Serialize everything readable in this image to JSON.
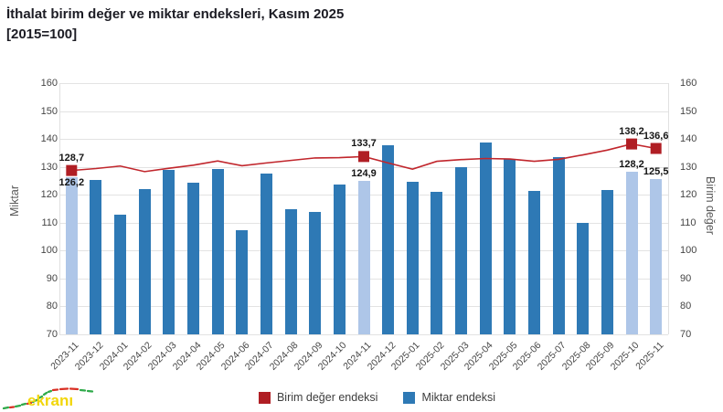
{
  "title": {
    "line1": "İthalat birim değer ve miktar endeksleri, Kasım 2025",
    "line2": "[2015=100]"
  },
  "legend": {
    "items": [
      {
        "label": "Birim değer endeksi",
        "color": "#b01e24"
      },
      {
        "label": "Miktar endeksi",
        "color": "#2e79b5"
      }
    ]
  },
  "watermark": {
    "text": "ekranı",
    "color": "#f2d60a"
  },
  "chart_data": {
    "type": "combo",
    "title": "İthalat birim değer ve miktar endeksleri, Kasım 2025 [2015=100]",
    "categories": [
      "2023-11",
      "2023-12",
      "2024-01",
      "2024-02",
      "2024-03",
      "2024-04",
      "2024-05",
      "2024-06",
      "2024-07",
      "2024-08",
      "2024-09",
      "2024-10",
      "2024-11",
      "2024-12",
      "2025-01",
      "2025-02",
      "2025-03",
      "2025-04",
      "2025-05",
      "2025-06",
      "2025-07",
      "2025-08",
      "2025-09",
      "2025-10",
      "2025-11"
    ],
    "series": [
      {
        "name": "Miktar endeksi",
        "type": "bar",
        "color": "#2e79b5",
        "highlight_color": "#aec6e8",
        "highlighted_categories": [
          "2023-11",
          "2024-11",
          "2025-10",
          "2025-11"
        ],
        "values": [
          126.2,
          125.4,
          112.9,
          121.9,
          128.8,
          124.3,
          129.2,
          107.4,
          127.5,
          114.9,
          113.8,
          123.8,
          124.9,
          137.7,
          124.7,
          121.0,
          129.8,
          138.6,
          132.7,
          121.4,
          133.4,
          109.9,
          121.6,
          128.2,
          125.5
        ]
      },
      {
        "name": "Birim değer endeksi",
        "type": "line",
        "color": "#c1262c",
        "marker_color": "#b01e24",
        "values": [
          128.7,
          129.4,
          130.3,
          128.3,
          129.5,
          130.6,
          132.1,
          130.4,
          131.4,
          132.3,
          133.2,
          133.3,
          133.7,
          131.4,
          129.2,
          132.0,
          132.6,
          133.0,
          132.8,
          132.0,
          132.7,
          134.3,
          136.0,
          138.2,
          136.6
        ]
      }
    ],
    "data_labels": [
      {
        "category": "2023-11",
        "line": "128,7",
        "bar": "126,2"
      },
      {
        "category": "2024-11",
        "line": "133,7",
        "bar": "124,9"
      },
      {
        "category": "2025-10",
        "line": "138,2",
        "bar": "128,2"
      },
      {
        "category": "2025-11",
        "line": "136,6",
        "bar": "125,5"
      }
    ],
    "ylim": [
      70,
      160
    ],
    "yticks": [
      70,
      80,
      90,
      100,
      110,
      120,
      130,
      140,
      150,
      160
    ],
    "ylabel_left": "Miktar",
    "ylabel_right": "Birim değer",
    "grid": true,
    "legend_position": "bottom"
  }
}
